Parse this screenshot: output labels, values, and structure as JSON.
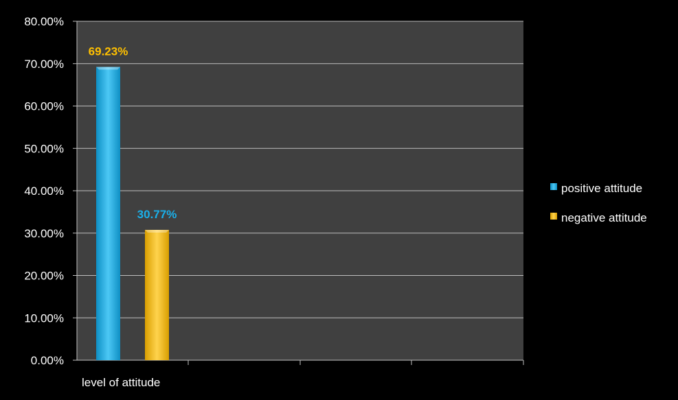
{
  "chart_data": {
    "type": "bar",
    "categories": [
      "level of attitude"
    ],
    "series": [
      {
        "name": "positive attitude",
        "values": [
          69.23
        ],
        "label": "69.23%",
        "color": "#1ab0ea",
        "label_color": "#ffc000"
      },
      {
        "name": "negative attitude",
        "values": [
          30.77
        ],
        "label": "30.77%",
        "color": "#ffc000",
        "label_color": "#1ab0ea"
      }
    ],
    "title": "",
    "xlabel": "",
    "ylabel": "",
    "ylim": [
      0,
      80
    ],
    "yticks": [
      "0.00%",
      "10.00%",
      "20.00%",
      "30.00%",
      "40.00%",
      "50.00%",
      "60.00%",
      "70.00%",
      "80.00%"
    ],
    "grid": true,
    "legend_position": "right",
    "colors": {
      "background": "#000000",
      "plot_area": "#404040",
      "gridline": "#bfbfbf",
      "text": "#ffffff"
    }
  }
}
